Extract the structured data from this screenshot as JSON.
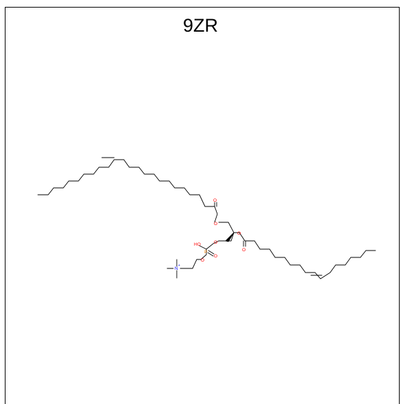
{
  "title": "9ZR",
  "colors": {
    "bond": "#000000",
    "oxygen": "#ff0000",
    "phosphorus": "#ff8000",
    "nitrogen": "#0000ff"
  },
  "labels": {
    "o_ester1": "O",
    "o_carbonyl1": "O",
    "o_ester2": "O",
    "o_carbonyl2": "O",
    "o_glycerol": "O",
    "ho": "HO",
    "p": "P",
    "o_p_double": "O",
    "o_p_chain": "O",
    "n": "N",
    "n_charge": "+"
  }
}
